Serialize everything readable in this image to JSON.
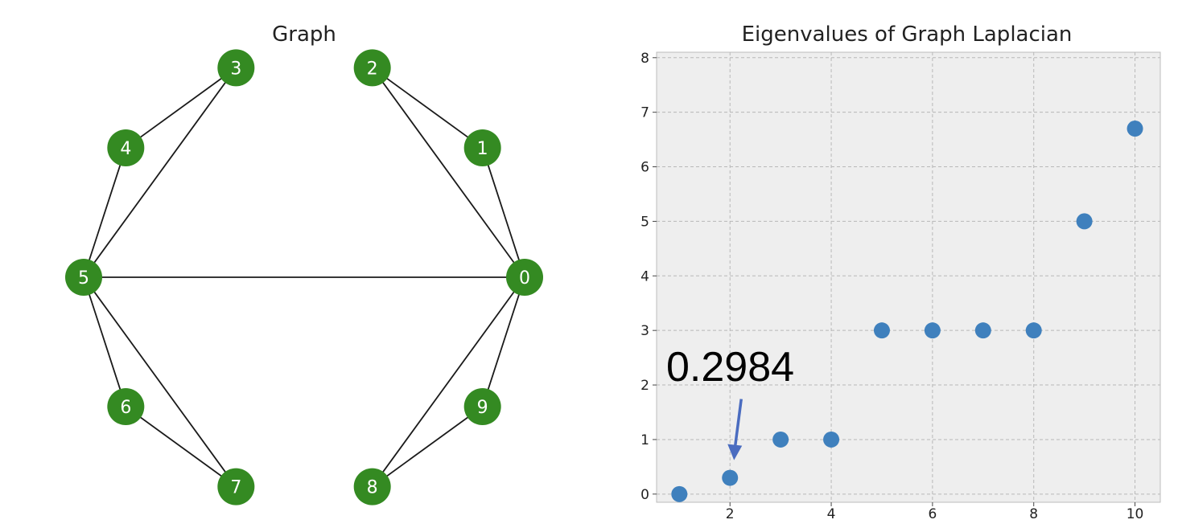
{
  "chart_data": [
    {
      "type": "graph",
      "title": "Graph",
      "node_color": "#348a22",
      "edge_color": "#1a1a1a",
      "nodes": [
        "0",
        "1",
        "2",
        "3",
        "4",
        "5",
        "6",
        "7",
        "8",
        "9"
      ],
      "edges": [
        [
          "0",
          "1"
        ],
        [
          "0",
          "2"
        ],
        [
          "1",
          "2"
        ],
        [
          "3",
          "4"
        ],
        [
          "3",
          "5"
        ],
        [
          "4",
          "5"
        ],
        [
          "0",
          "5"
        ],
        [
          "5",
          "6"
        ],
        [
          "5",
          "7"
        ],
        [
          "6",
          "7"
        ],
        [
          "0",
          "8"
        ],
        [
          "0",
          "9"
        ],
        [
          "8",
          "9"
        ]
      ],
      "layout": "circular"
    },
    {
      "type": "scatter",
      "title": "Eigenvalues of Graph Laplacian",
      "xlabel": "",
      "ylabel": "",
      "x": [
        1,
        2,
        3,
        4,
        5,
        6,
        7,
        8,
        9,
        10
      ],
      "y": [
        0,
        0.2984,
        1,
        1,
        3,
        3,
        3,
        3,
        5,
        6.7
      ],
      "xlim": [
        0.55,
        10.5
      ],
      "ylim": [
        -0.15,
        8.1
      ],
      "xticks": [
        2,
        4,
        6,
        8,
        10
      ],
      "yticks": [
        0,
        1,
        2,
        3,
        4,
        5,
        6,
        7,
        8
      ],
      "grid": true,
      "point_color": "#3f80bd",
      "background": "#eeeeee",
      "annotation": {
        "text": "0.2984",
        "target_x": 2,
        "target_y": 0.2984,
        "arrow_color": "#4a6cc0"
      }
    }
  ]
}
